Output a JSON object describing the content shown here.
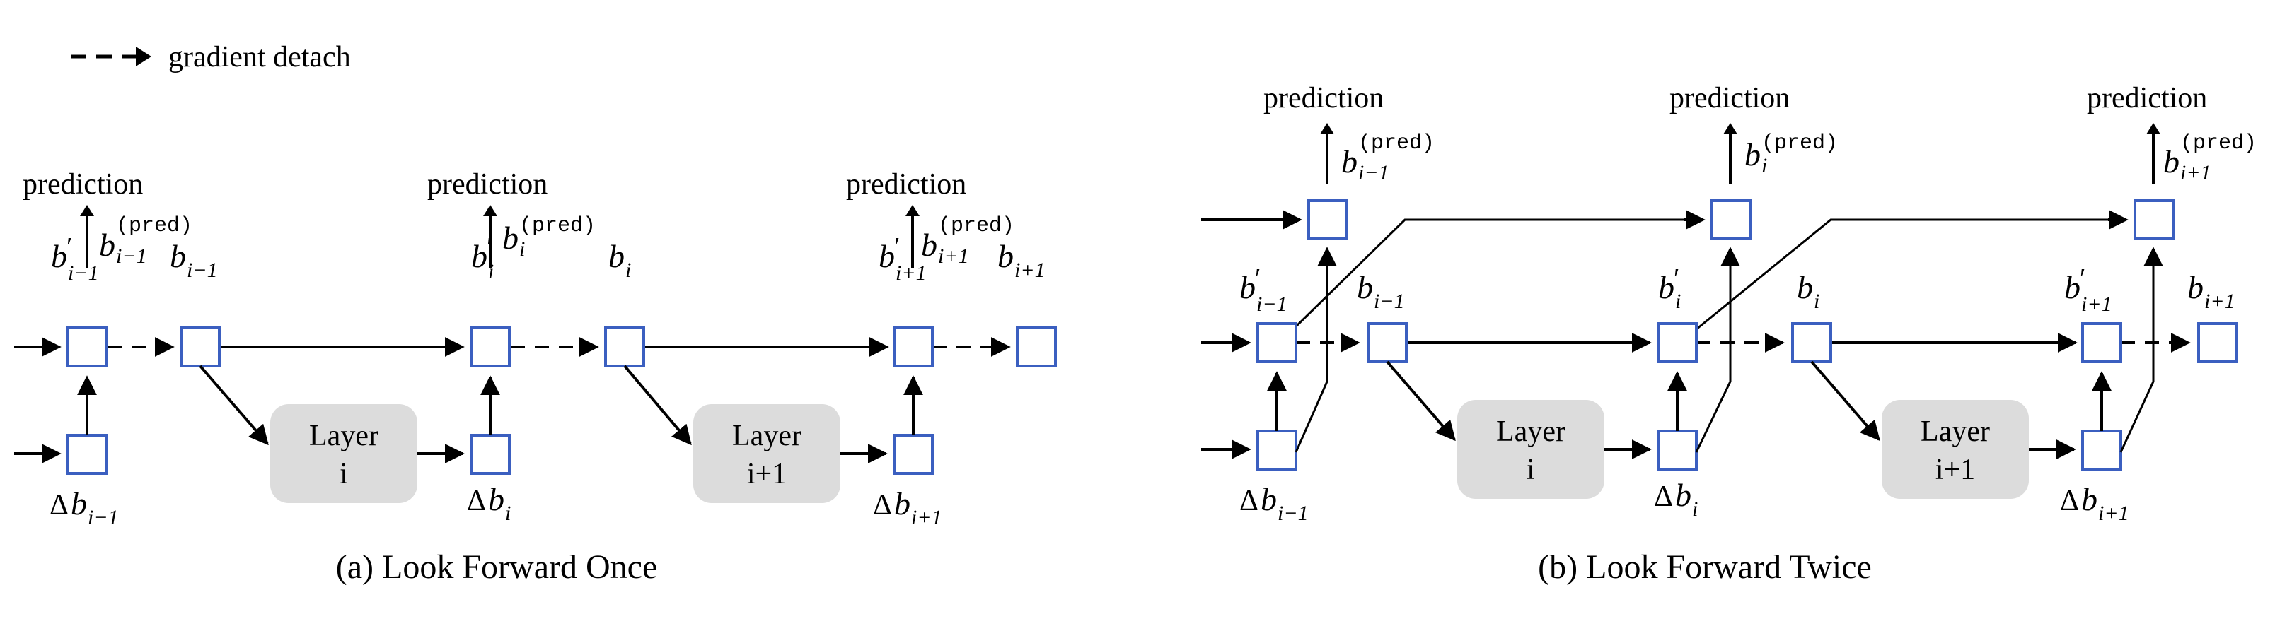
{
  "legend": {
    "text": "gradient detach"
  },
  "labels": {
    "prediction": "prediction",
    "layer": "Layer",
    "b": "b",
    "delta": "Δ",
    "prime": "′",
    "pred": "(pred)",
    "sub_im1": "i−1",
    "sub_i": "i",
    "sub_ip1": "i+1"
  },
  "captions": {
    "a": "(a) Look Forward Once",
    "b": "(b) Look Forward Twice"
  },
  "layers": {
    "i": "i",
    "ip1": "i+1"
  },
  "colors": {
    "box_stroke": "#3b5fc0",
    "layer_fill": "#dcdcdc",
    "line": "#000000"
  }
}
